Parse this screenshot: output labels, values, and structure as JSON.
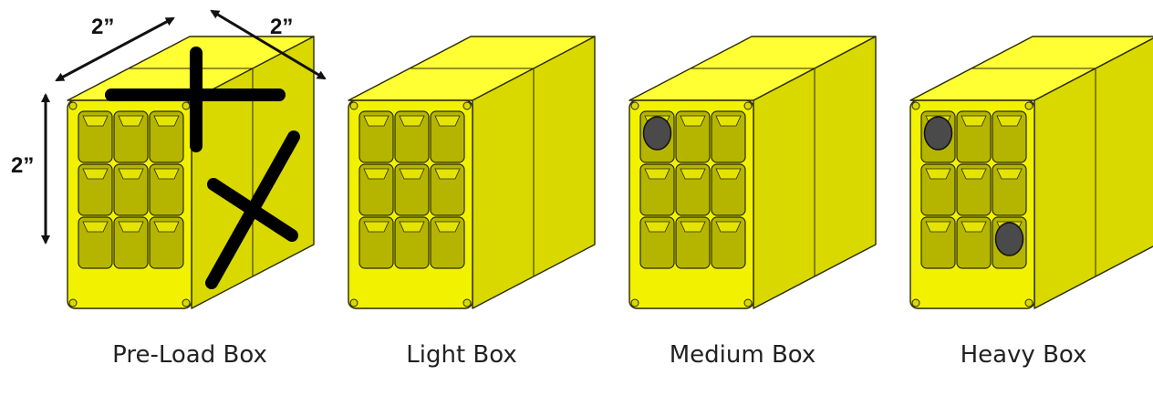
{
  "dimensions": {
    "width_label": "2”",
    "depth_label": "2”",
    "height_label": "2”"
  },
  "boxes": [
    {
      "label": "Pre-Load Box",
      "variant": "preload",
      "weights": []
    },
    {
      "label": "Light Box",
      "variant": "light",
      "weights": []
    },
    {
      "label": "Medium Box",
      "variant": "medium",
      "weights": [
        "top-left"
      ]
    },
    {
      "label": "Heavy Box",
      "variant": "heavy",
      "weights": [
        "top-left",
        "bottom-right"
      ]
    }
  ],
  "colors": {
    "box_front": "#f2f200",
    "box_side": "#d9d900",
    "box_top": "#ffff33",
    "cell_inner": "#b5b500",
    "outline": "#2a2a00",
    "weight_disc": "#4a4a4a",
    "marker": "#000000"
  }
}
